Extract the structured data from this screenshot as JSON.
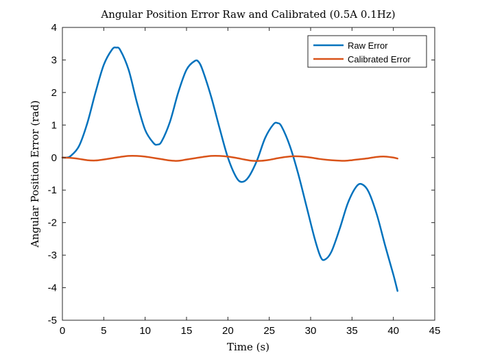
{
  "chart_data": {
    "type": "line",
    "title": "Angular Position Error Raw and Calibrated (0.5A 0.1Hz)",
    "xlabel": "Time (s)",
    "ylabel": "Angular Position Error (rad)",
    "xlim": [
      0,
      45
    ],
    "ylim": [
      -5,
      4
    ],
    "xticks": [
      0,
      5,
      10,
      15,
      20,
      25,
      30,
      35,
      40,
      45
    ],
    "yticks": [
      -5,
      -4,
      -3,
      -2,
      -1,
      0,
      1,
      2,
      3,
      4
    ],
    "grid": false,
    "legend_position": "top-right",
    "series": [
      {
        "name": "Raw Error",
        "color": "#0072BD",
        "points": [
          [
            0,
            0
          ],
          [
            0.5,
            0.0
          ],
          [
            1,
            0.05
          ],
          [
            2,
            0.35
          ],
          [
            3,
            1.05
          ],
          [
            4,
            2.0
          ],
          [
            5,
            2.85
          ],
          [
            6,
            3.32
          ],
          [
            6.5,
            3.38
          ],
          [
            7,
            3.3
          ],
          [
            8,
            2.7
          ],
          [
            9,
            1.7
          ],
          [
            10,
            0.85
          ],
          [
            11,
            0.45
          ],
          [
            11.5,
            0.4
          ],
          [
            12,
            0.5
          ],
          [
            13,
            1.1
          ],
          [
            14,
            2.0
          ],
          [
            15,
            2.7
          ],
          [
            16,
            2.97
          ],
          [
            16.5,
            2.93
          ],
          [
            17,
            2.65
          ],
          [
            18,
            1.85
          ],
          [
            19,
            0.9
          ],
          [
            20,
            0.0
          ],
          [
            21,
            -0.6
          ],
          [
            21.7,
            -0.75
          ],
          [
            22.5,
            -0.6
          ],
          [
            23.5,
            -0.1
          ],
          [
            24.5,
            0.6
          ],
          [
            25.5,
            1.02
          ],
          [
            26,
            1.06
          ],
          [
            26.5,
            0.95
          ],
          [
            27.5,
            0.35
          ],
          [
            28.5,
            -0.5
          ],
          [
            29.5,
            -1.5
          ],
          [
            30.5,
            -2.5
          ],
          [
            31.2,
            -3.05
          ],
          [
            31.7,
            -3.14
          ],
          [
            32.5,
            -2.9
          ],
          [
            33.5,
            -2.2
          ],
          [
            34.5,
            -1.4
          ],
          [
            35.5,
            -0.9
          ],
          [
            36.2,
            -0.82
          ],
          [
            37,
            -1.05
          ],
          [
            38,
            -1.75
          ],
          [
            39,
            -2.7
          ],
          [
            40,
            -3.6
          ],
          [
            40.5,
            -4.1
          ]
        ]
      },
      {
        "name": "Calibrated Error",
        "color": "#D95319",
        "points": [
          [
            0,
            0
          ],
          [
            1,
            -0.01
          ],
          [
            2,
            -0.04
          ],
          [
            3,
            -0.08
          ],
          [
            4,
            -0.09
          ],
          [
            5,
            -0.06
          ],
          [
            6,
            -0.02
          ],
          [
            7,
            0.02
          ],
          [
            8,
            0.05
          ],
          [
            9,
            0.05
          ],
          [
            10,
            0.03
          ],
          [
            11,
            -0.01
          ],
          [
            12,
            -0.05
          ],
          [
            13,
            -0.09
          ],
          [
            14,
            -0.1
          ],
          [
            15,
            -0.06
          ],
          [
            16,
            -0.02
          ],
          [
            17,
            0.02
          ],
          [
            18,
            0.05
          ],
          [
            19,
            0.05
          ],
          [
            20,
            0.03
          ],
          [
            21,
            -0.01
          ],
          [
            22,
            -0.06
          ],
          [
            23,
            -0.1
          ],
          [
            24,
            -0.1
          ],
          [
            25,
            -0.07
          ],
          [
            26,
            -0.02
          ],
          [
            27,
            0.02
          ],
          [
            28,
            0.04
          ],
          [
            29,
            0.03
          ],
          [
            30,
            0.0
          ],
          [
            31,
            -0.04
          ],
          [
            32,
            -0.07
          ],
          [
            33,
            -0.09
          ],
          [
            34,
            -0.1
          ],
          [
            35,
            -0.08
          ],
          [
            36,
            -0.05
          ],
          [
            37,
            -0.02
          ],
          [
            38,
            0.02
          ],
          [
            39,
            0.03
          ],
          [
            40,
            0.0
          ],
          [
            40.5,
            -0.03
          ]
        ]
      }
    ]
  }
}
